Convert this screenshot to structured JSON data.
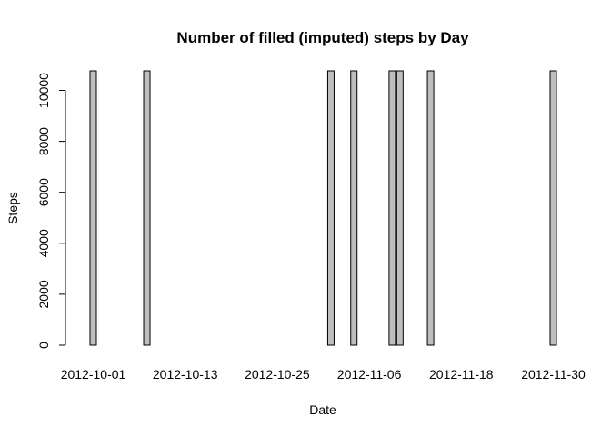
{
  "chart_data": {
    "type": "bar",
    "title": "Number of filled (imputed) steps by Day",
    "xlabel": "Date",
    "ylabel": "Steps",
    "ylim": [
      0,
      10766.19
    ],
    "yticks": [
      0,
      2000,
      4000,
      6000,
      8000,
      10000
    ],
    "xtick_labels": [
      "2012-10-01",
      "2012-10-13",
      "2012-10-25",
      "2012-11-06",
      "2012-11-18",
      "2012-11-30"
    ],
    "bar_color": "#bebebe",
    "grid": false,
    "categories": [
      "2012-10-01",
      "2012-10-02",
      "2012-10-03",
      "2012-10-04",
      "2012-10-05",
      "2012-10-06",
      "2012-10-07",
      "2012-10-08",
      "2012-10-09",
      "2012-10-10",
      "2012-10-11",
      "2012-10-12",
      "2012-10-13",
      "2012-10-14",
      "2012-10-15",
      "2012-10-16",
      "2012-10-17",
      "2012-10-18",
      "2012-10-19",
      "2012-10-20",
      "2012-10-21",
      "2012-10-22",
      "2012-10-23",
      "2012-10-24",
      "2012-10-25",
      "2012-10-26",
      "2012-10-27",
      "2012-10-28",
      "2012-10-29",
      "2012-10-30",
      "2012-10-31",
      "2012-11-01",
      "2012-11-02",
      "2012-11-03",
      "2012-11-04",
      "2012-11-05",
      "2012-11-06",
      "2012-11-07",
      "2012-11-08",
      "2012-11-09",
      "2012-11-10",
      "2012-11-11",
      "2012-11-12",
      "2012-11-13",
      "2012-11-14",
      "2012-11-15",
      "2012-11-16",
      "2012-11-17",
      "2012-11-18",
      "2012-11-19",
      "2012-11-20",
      "2012-11-21",
      "2012-11-22",
      "2012-11-23",
      "2012-11-24",
      "2012-11-25",
      "2012-11-26",
      "2012-11-27",
      "2012-11-28",
      "2012-11-29",
      "2012-11-30"
    ],
    "values": [
      10766.19,
      0,
      0,
      0,
      0,
      0,
      0,
      10766.19,
      0,
      0,
      0,
      0,
      0,
      0,
      0,
      0,
      0,
      0,
      0,
      0,
      0,
      0,
      0,
      0,
      0,
      0,
      0,
      0,
      0,
      0,
      0,
      10766.19,
      0,
      0,
      10766.19,
      0,
      0,
      0,
      0,
      10766.19,
      10766.19,
      0,
      0,
      0,
      10766.19,
      0,
      0,
      0,
      0,
      0,
      0,
      0,
      0,
      0,
      0,
      0,
      0,
      0,
      0,
      0,
      10766.19
    ]
  }
}
